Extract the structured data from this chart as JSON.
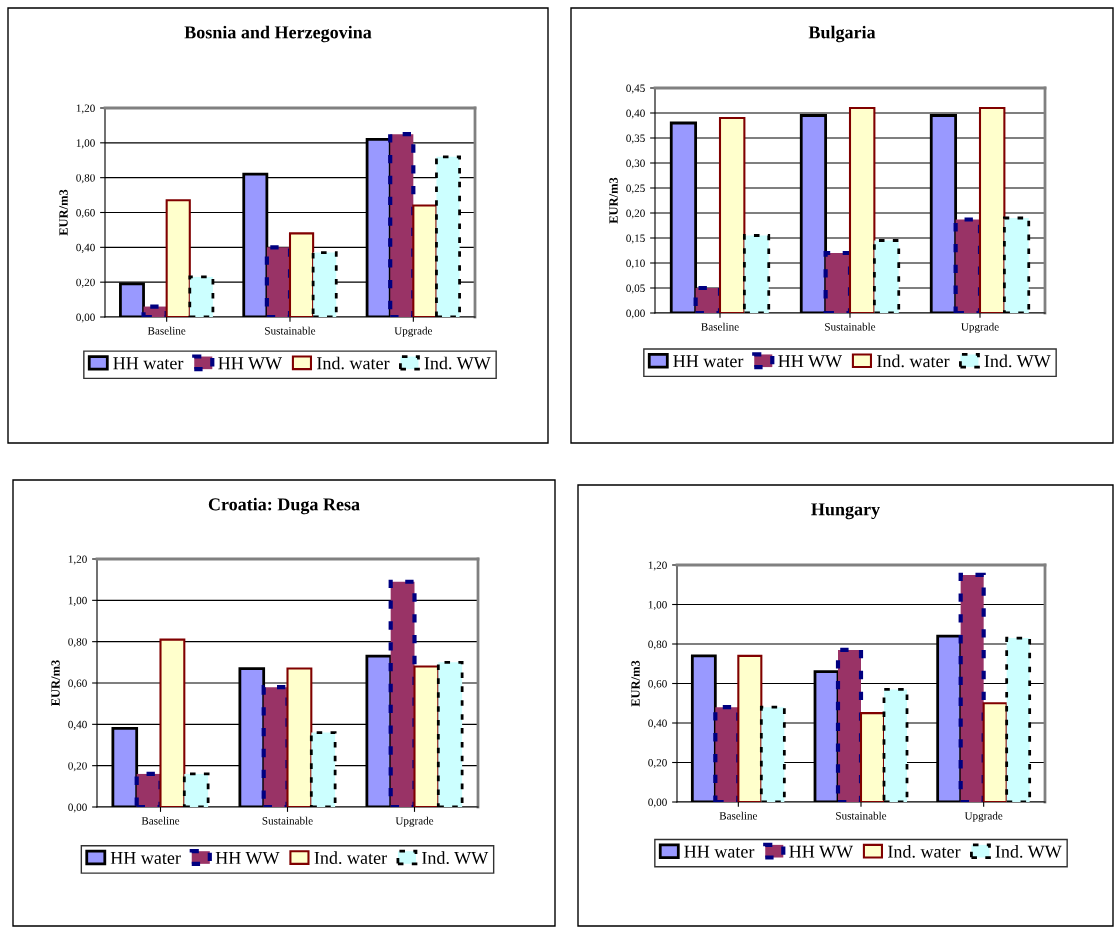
{
  "chart_data": [
    {
      "type": "bar",
      "title": "Bosnia and Herzegovina",
      "ylabel": "EUR/m3",
      "categories": [
        "Baseline",
        "Sustainable",
        "Upgrade"
      ],
      "ylim": [
        0,
        1.2
      ],
      "yticks": [
        {
          "value": 0,
          "label": "0,00"
        },
        {
          "value": 0.2,
          "label": "0,20"
        },
        {
          "value": 0.4,
          "label": "0,40"
        },
        {
          "value": 0.6,
          "label": "0,60"
        },
        {
          "value": 0.8,
          "label": "0,80"
        },
        {
          "value": 1.0,
          "label": "1,00"
        },
        {
          "value": 1.2,
          "label": "1,20"
        }
      ],
      "grid": "y",
      "legend": "bottom",
      "series": [
        {
          "name": "HH water",
          "color": "#9999ff",
          "values": [
            0.19,
            0.82,
            1.02
          ]
        },
        {
          "name": "HH WW",
          "color": "#993366",
          "values": [
            0.06,
            0.4,
            1.05
          ]
        },
        {
          "name": "Ind. water",
          "color": "#ffffcc",
          "values": [
            0.67,
            0.48,
            0.64
          ]
        },
        {
          "name": "Ind. WW",
          "color": "#ccffff",
          "values": [
            0.23,
            0.37,
            0.92
          ]
        }
      ]
    },
    {
      "type": "bar",
      "title": "Bulgaria",
      "ylabel": "EUR/m3",
      "categories": [
        "Baseline",
        "Sustainable",
        "Upgrade"
      ],
      "ylim": [
        0,
        0.45
      ],
      "yticks": [
        {
          "value": 0,
          "label": "0,00"
        },
        {
          "value": 0.05,
          "label": "0,05"
        },
        {
          "value": 0.1,
          "label": "0,10"
        },
        {
          "value": 0.15,
          "label": "0,15"
        },
        {
          "value": 0.2,
          "label": "0,20"
        },
        {
          "value": 0.25,
          "label": "0,25"
        },
        {
          "value": 0.3,
          "label": "0,30"
        },
        {
          "value": 0.35,
          "label": "0,35"
        },
        {
          "value": 0.4,
          "label": "0,40"
        },
        {
          "value": 0.45,
          "label": "0,45"
        }
      ],
      "grid": "y",
      "legend": "bottom",
      "series": [
        {
          "name": "HH water",
          "color": "#9999ff",
          "values": [
            0.38,
            0.395,
            0.395
          ]
        },
        {
          "name": "HH WW",
          "color": "#993366",
          "values": [
            0.05,
            0.12,
            0.187
          ]
        },
        {
          "name": "Ind. water",
          "color": "#ffffcc",
          "values": [
            0.39,
            0.41,
            0.41
          ]
        },
        {
          "name": "Ind. WW",
          "color": "#ccffff",
          "values": [
            0.155,
            0.145,
            0.19
          ]
        }
      ]
    },
    {
      "type": "bar",
      "title": "Croatia: Duga Resa",
      "ylabel": "EUR/m3",
      "categories": [
        "Baseline",
        "Sustainable",
        "Upgrade"
      ],
      "ylim": [
        0,
        1.2
      ],
      "yticks": [
        {
          "value": 0,
          "label": "0,00"
        },
        {
          "value": 0.2,
          "label": "0,20"
        },
        {
          "value": 0.4,
          "label": "0,40"
        },
        {
          "value": 0.6,
          "label": "0,60"
        },
        {
          "value": 0.8,
          "label": "0,80"
        },
        {
          "value": 1.0,
          "label": "1,00"
        },
        {
          "value": 1.2,
          "label": "1,20"
        }
      ],
      "grid": "y",
      "legend": "bottom",
      "series": [
        {
          "name": "HH water",
          "color": "#9999ff",
          "values": [
            0.38,
            0.67,
            0.73
          ]
        },
        {
          "name": "HH WW",
          "color": "#993366",
          "values": [
            0.16,
            0.58,
            1.09
          ]
        },
        {
          "name": "Ind. water",
          "color": "#ffffcc",
          "values": [
            0.81,
            0.67,
            0.68
          ]
        },
        {
          "name": "Ind. WW",
          "color": "#ccffff",
          "values": [
            0.16,
            0.36,
            0.7
          ]
        }
      ]
    },
    {
      "type": "bar",
      "title": "Hungary",
      "ylabel": "EUR/m3",
      "categories": [
        "Baseline",
        "Sustainable",
        "Upgrade"
      ],
      "ylim": [
        0,
        1.2
      ],
      "yticks": [
        {
          "value": 0,
          "label": "0,00"
        },
        {
          "value": 0.2,
          "label": "0,20"
        },
        {
          "value": 0.4,
          "label": "0,40"
        },
        {
          "value": 0.6,
          "label": "0,60"
        },
        {
          "value": 0.8,
          "label": "0,80"
        },
        {
          "value": 1.0,
          "label": "1,00"
        },
        {
          "value": 1.2,
          "label": "1,20"
        }
      ],
      "grid": "y",
      "legend": "bottom",
      "series": [
        {
          "name": "HH water",
          "color": "#9999ff",
          "values": [
            0.74,
            0.66,
            0.84
          ]
        },
        {
          "name": "HH WW",
          "color": "#993366",
          "values": [
            0.48,
            0.77,
            1.15
          ]
        },
        {
          "name": "Ind. water",
          "color": "#ffffcc",
          "values": [
            0.74,
            0.45,
            0.5
          ]
        },
        {
          "name": "Ind. WW",
          "color": "#ccffff",
          "values": [
            0.48,
            0.57,
            0.83
          ]
        }
      ]
    }
  ]
}
